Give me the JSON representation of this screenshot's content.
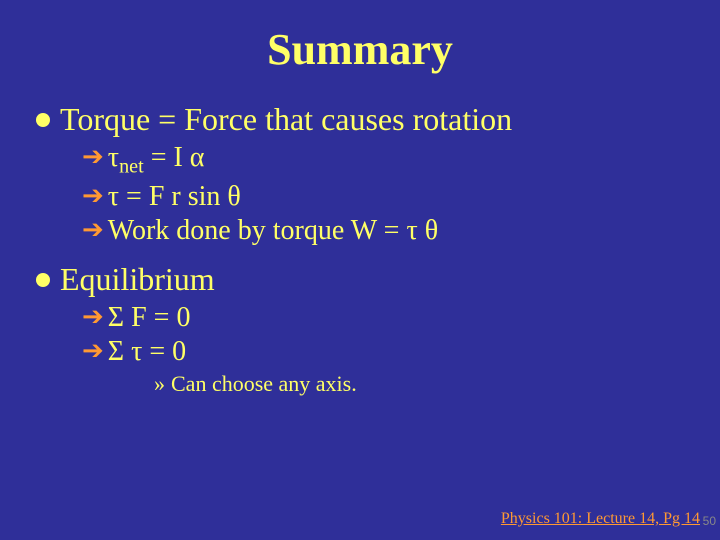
{
  "colors": {
    "background": "#2f2f99",
    "title": "#ffff66",
    "body_text": "#ffff66",
    "bullet_dot": "#ffff66",
    "arrow": "#ff9933",
    "footer": "#ff9933",
    "page_num": "#888888"
  },
  "typography": {
    "title_fontsize": 44,
    "lvl1_fontsize": 32,
    "lvl2_fontsize": 28,
    "lvl3_fontsize": 22,
    "footer_fontsize": 16,
    "page_num_fontsize": 12,
    "font_family": "Times New Roman"
  },
  "title": "Summary",
  "sections": [
    {
      "heading": "Torque = Force that causes rotation",
      "items": [
        {
          "html": "τ<span class='sub'>net</span> = I α"
        },
        {
          "text": "τ = F r sin θ"
        },
        {
          "text": "Work done by torque W = τ θ"
        }
      ]
    },
    {
      "heading": "Equilibrium",
      "items": [
        {
          "text": "Σ F = 0"
        },
        {
          "text": "Σ τ = 0"
        }
      ],
      "subitems": [
        {
          "text": "Can choose any axis."
        }
      ]
    }
  ],
  "footer": "Physics 101: Lecture 14, Pg 14",
  "page_number": "50",
  "glyphs": {
    "arrow": "➔",
    "raquo": "»"
  }
}
